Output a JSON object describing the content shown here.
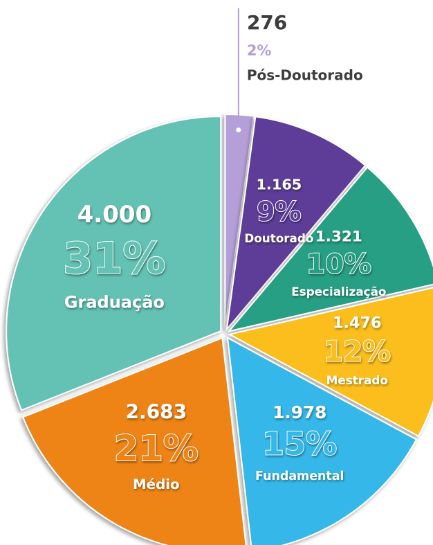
{
  "chart_data": {
    "type": "pie",
    "categories": [
      "Pós-Doutorado",
      "Doutorado",
      "Especialização",
      "Mestrado",
      "Fundamental",
      "Médio",
      "Graduação"
    ],
    "values": [
      276,
      1165,
      1321,
      1476,
      1978,
      2683,
      4000
    ],
    "value_labels": [
      "276",
      "1.165",
      "1.321",
      "1.476",
      "1.978",
      "2.683",
      "4.000"
    ],
    "shares": [
      2,
      9,
      10,
      12,
      15,
      21,
      31
    ],
    "share_labels": [
      "2%",
      "9%",
      "10%",
      "12%",
      "15%",
      "21%",
      "31%"
    ],
    "colors": [
      "#b59fd8",
      "#5d3c98",
      "#279f84",
      "#fbbe1b",
      "#36b8e9",
      "#ef8419",
      "#63c2b3"
    ]
  }
}
